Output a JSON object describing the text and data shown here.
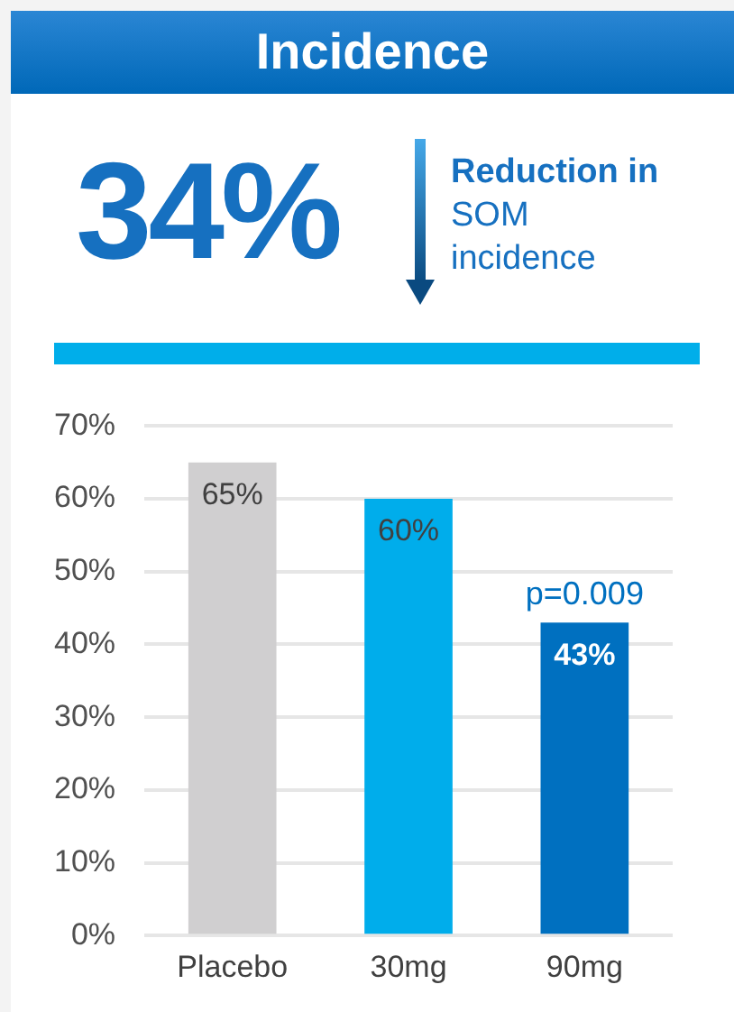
{
  "chart_data": {
    "type": "bar",
    "title": "Incidence",
    "categories": [
      "Placebo",
      "30mg",
      "90mg"
    ],
    "values": [
      65,
      60,
      43
    ],
    "colors": [
      "#d0cfd0",
      "#00adeb",
      "#0070c0"
    ],
    "value_labels": [
      "65%",
      "60%",
      "43%"
    ],
    "ylim": [
      0,
      70
    ],
    "yticks": [
      {
        "value": 0,
        "label": "0%"
      },
      {
        "value": 10,
        "label": "10%"
      },
      {
        "value": 20,
        "label": "20%"
      },
      {
        "value": 30,
        "label": "30%"
      },
      {
        "value": 40,
        "label": "40%"
      },
      {
        "value": 50,
        "label": "50%"
      },
      {
        "value": 60,
        "label": "60%"
      },
      {
        "value": 70,
        "label": "70%"
      }
    ],
    "grid": "y",
    "legend": false,
    "annotations": [
      "34%",
      "Reduction in SOM incidence",
      {
        "text": "p=0.009",
        "x": "90mg",
        "y": 43
      }
    ]
  }
}
